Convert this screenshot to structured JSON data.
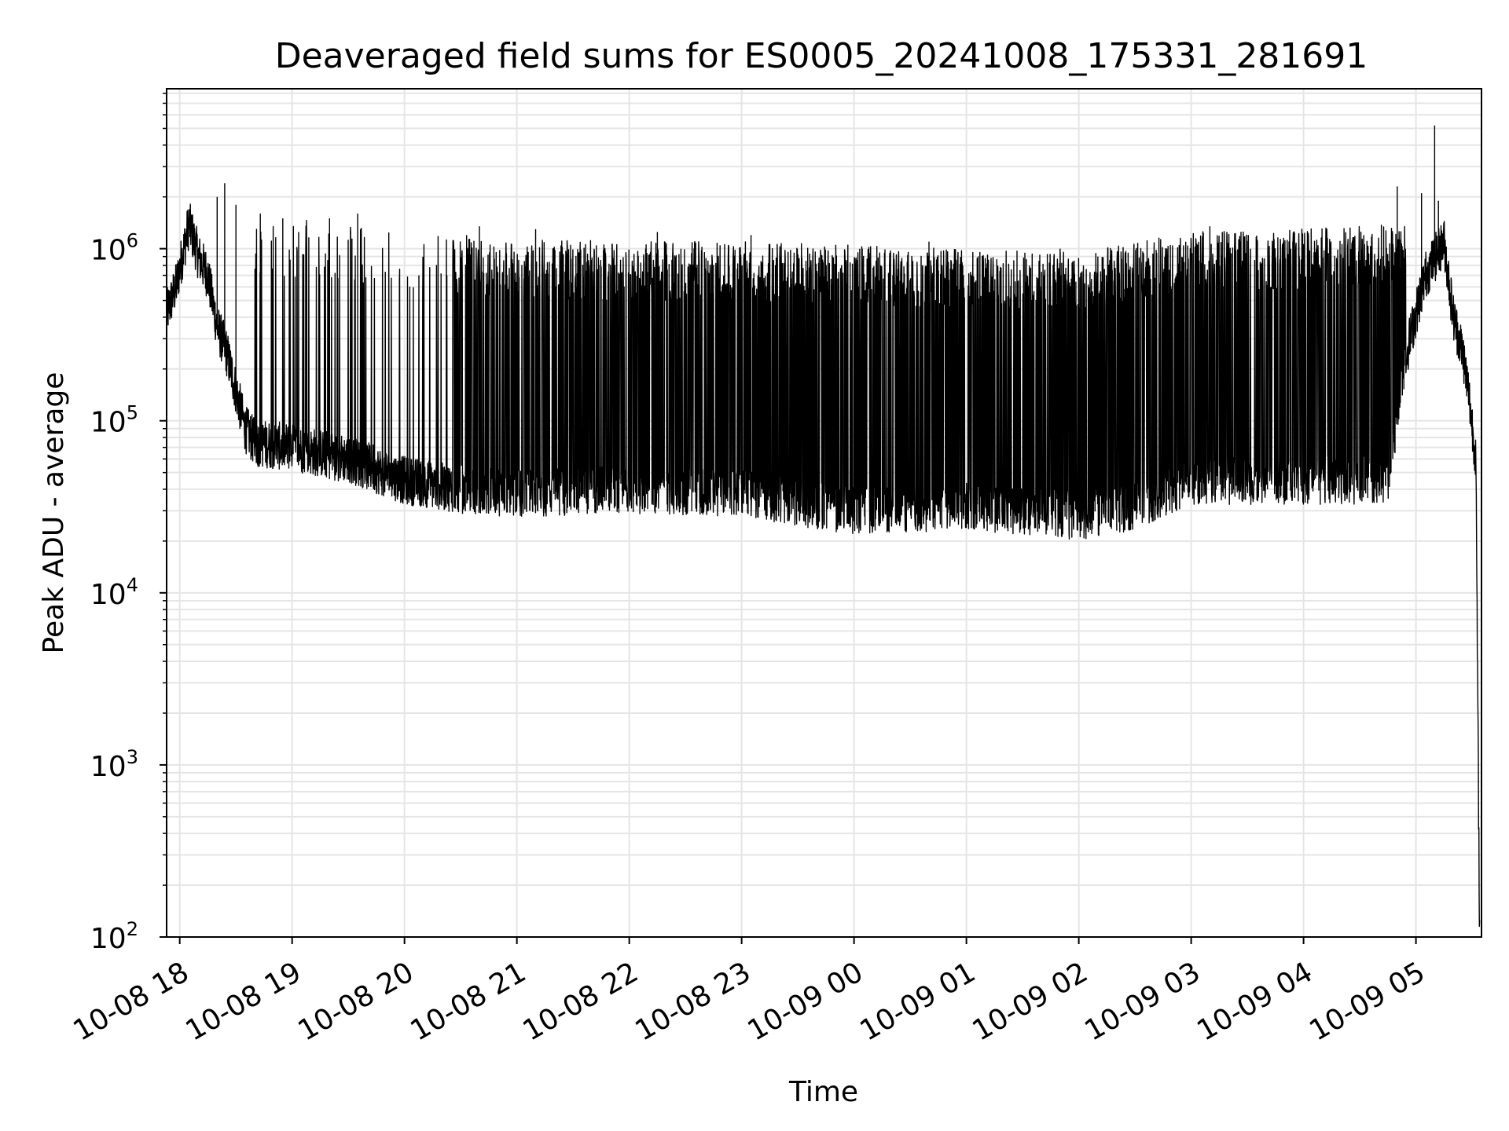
{
  "chart_data": {
    "type": "line",
    "title": "Deaveraged field sums for ES0005_20241008_175331_281691",
    "xlabel": "Time",
    "ylabel": "Peak ADU - average",
    "y_scale": "log",
    "ylim": [
      100,
      8500000
    ],
    "xlim": [
      "2024-10-08 17:53",
      "2024-10-09 05:35"
    ],
    "grid": true,
    "line_color": "#000000",
    "grid_color": "#e5e5e5",
    "x_ticks": [
      {
        "value": "2024-10-08 18:00",
        "label": "10-08 18"
      },
      {
        "value": "2024-10-08 19:00",
        "label": "10-08 19"
      },
      {
        "value": "2024-10-08 20:00",
        "label": "10-08 20"
      },
      {
        "value": "2024-10-08 21:00",
        "label": "10-08 21"
      },
      {
        "value": "2024-10-08 22:00",
        "label": "10-08 22"
      },
      {
        "value": "2024-10-08 23:00",
        "label": "10-08 23"
      },
      {
        "value": "2024-10-09 00:00",
        "label": "10-09 00"
      },
      {
        "value": "2024-10-09 01:00",
        "label": "10-09 01"
      },
      {
        "value": "2024-10-09 02:00",
        "label": "10-09 02"
      },
      {
        "value": "2024-10-09 03:00",
        "label": "10-09 03"
      },
      {
        "value": "2024-10-09 04:00",
        "label": "10-09 04"
      },
      {
        "value": "2024-10-09 05:00",
        "label": "10-09 05"
      }
    ],
    "y_ticks": [
      {
        "value": 100,
        "base": "10",
        "exp": "2"
      },
      {
        "value": 1000,
        "base": "10",
        "exp": "3"
      },
      {
        "value": 10000,
        "base": "10",
        "exp": "4"
      },
      {
        "value": 100000,
        "base": "10",
        "exp": "5"
      },
      {
        "value": 1000000,
        "base": "10",
        "exp": "6"
      }
    ],
    "series": [
      {
        "baseline": {
          "x": [
            "2024-10-08 17:53",
            "2024-10-08 17:58",
            "2024-10-08 18:05",
            "2024-10-08 18:10",
            "2024-10-08 18:15",
            "2024-10-08 18:20",
            "2024-10-08 18:25",
            "2024-10-08 18:30",
            "2024-10-08 18:35",
            "2024-10-08 18:40",
            "2024-10-08 18:50",
            "2024-10-08 19:00",
            "2024-10-08 19:30",
            "2024-10-08 20:00",
            "2024-10-08 20:30",
            "2024-10-08 21:00",
            "2024-10-08 22:00",
            "2024-10-08 23:00",
            "2024-10-09 00:00",
            "2024-10-09 01:00",
            "2024-10-09 02:00",
            "2024-10-09 02:30",
            "2024-10-09 03:00",
            "2024-10-09 04:00",
            "2024-10-09 04:45",
            "2024-10-09 04:55",
            "2024-10-09 05:05",
            "2024-10-09 05:15",
            "2024-10-09 05:20",
            "2024-10-09 05:25",
            "2024-10-09 05:28",
            "2024-10-09 05:32",
            "2024-10-09 05:34"
          ],
          "y": [
            420000,
            600000,
            1400000,
            900000,
            700000,
            350000,
            250000,
            150000,
            90000,
            75000,
            72000,
            70000,
            60000,
            45000,
            40000,
            38000,
            40000,
            38000,
            30000,
            32000,
            28000,
            32000,
            45000,
            45000,
            45000,
            250000,
            700000,
            1100000,
            400000,
            250000,
            150000,
            60000,
            100
          ]
        },
        "spikes": [
          {
            "x": "2024-10-08 18:20",
            "y": 2000000
          },
          {
            "x": "2024-10-08 18:24",
            "y": 2400000
          },
          {
            "x": "2024-10-08 18:30",
            "y": 1800000
          },
          {
            "x": "2024-10-08 18:43",
            "y": 1600000
          },
          {
            "x": "2024-10-08 18:55",
            "y": 1500000
          },
          {
            "x": "2024-10-08 19:20",
            "y": 1500000
          },
          {
            "x": "2024-10-08 19:35",
            "y": 1600000
          },
          {
            "x": "2024-10-08 20:40",
            "y": 1350000
          },
          {
            "x": "2024-10-08 21:10",
            "y": 1300000
          },
          {
            "x": "2024-10-08 22:15",
            "y": 1250000
          },
          {
            "x": "2024-10-08 23:05",
            "y": 1200000
          },
          {
            "x": "2024-10-09 00:40",
            "y": 1100000
          },
          {
            "x": "2024-10-09 01:50",
            "y": 1000000
          },
          {
            "x": "2024-10-09 03:10",
            "y": 1350000
          },
          {
            "x": "2024-10-09 04:50",
            "y": 2300000
          },
          {
            "x": "2024-10-09 05:03",
            "y": 2100000
          },
          {
            "x": "2024-10-09 05:10",
            "y": 5200000
          },
          {
            "x": "2024-10-09 05:12",
            "y": 1900000
          }
        ],
        "envelope": {
          "x": [
            "2024-10-08 18:40",
            "2024-10-08 19:00",
            "2024-10-08 19:30",
            "2024-10-08 20:00",
            "2024-10-08 20:30",
            "2024-10-08 21:00",
            "2024-10-08 22:00",
            "2024-10-08 23:00",
            "2024-10-09 00:00",
            "2024-10-09 01:00",
            "2024-10-09 02:00",
            "2024-10-09 03:00",
            "2024-10-09 04:00",
            "2024-10-09 04:55"
          ],
          "y": [
            1500000,
            1500000,
            1400000,
            1200000,
            1200000,
            1150000,
            1100000,
            1100000,
            1050000,
            1000000,
            950000,
            1250000,
            1300000,
            1400000
          ]
        }
      }
    ]
  }
}
